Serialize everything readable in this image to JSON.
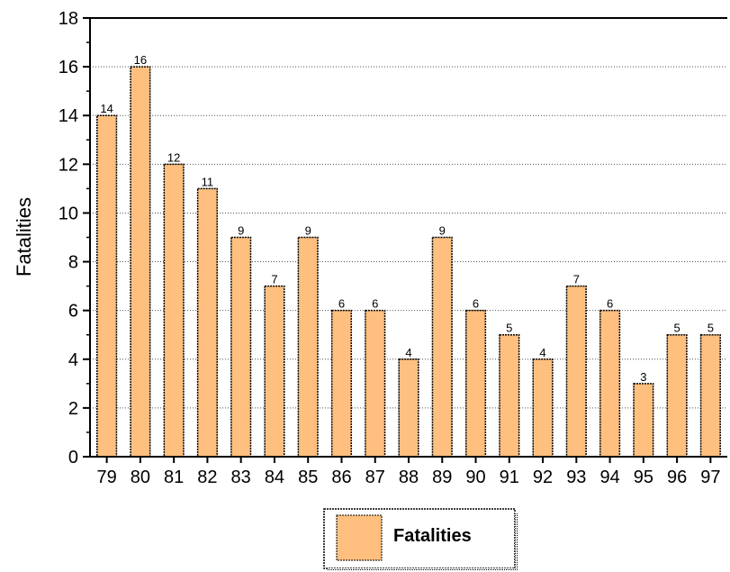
{
  "chart_data": {
    "type": "bar",
    "categories": [
      "79",
      "80",
      "81",
      "82",
      "83",
      "84",
      "85",
      "86",
      "87",
      "88",
      "89",
      "90",
      "91",
      "92",
      "93",
      "94",
      "95",
      "96",
      "97"
    ],
    "series": [
      {
        "name": "Fatalities",
        "values": [
          14,
          16,
          12,
          11,
          9,
          7,
          9,
          6,
          6,
          4,
          9,
          6,
          5,
          4,
          7,
          6,
          3,
          5,
          5
        ]
      }
    ],
    "ylabel": "Fatalities",
    "xlabel": "",
    "ylim": [
      0,
      18
    ],
    "yticks": [
      0,
      2,
      4,
      6,
      8,
      10,
      12,
      14,
      16,
      18
    ],
    "grid": "horizontal dotted",
    "legend": "bottom-center",
    "bar_color": "#FFC07F",
    "data_labels": true
  }
}
